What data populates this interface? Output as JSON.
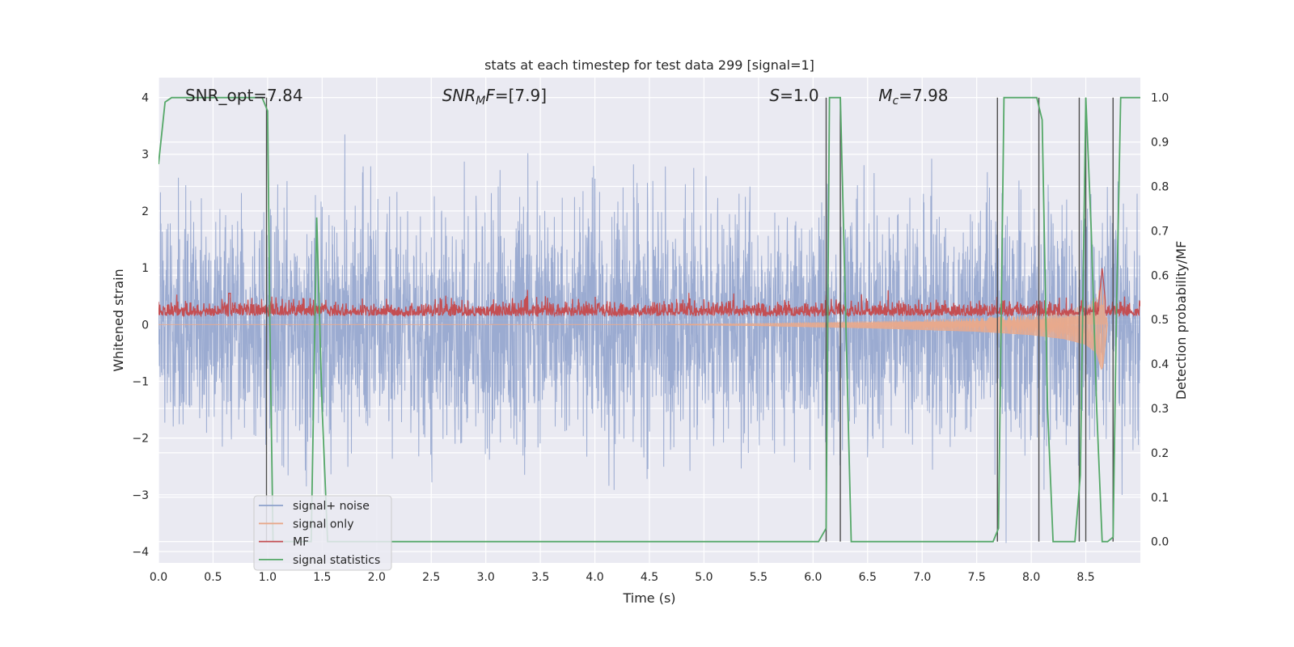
{
  "chart_data": {
    "type": "line",
    "title": "stats at each timestep for test data 299 [signal=1]",
    "xlabel": "Time (s)",
    "ylabel": "Whitened strain",
    "y2label": "Detection probability/MF",
    "xlim": [
      0.0,
      9.0
    ],
    "ylim": [
      -4.2,
      4.35
    ],
    "y2lim": [
      -0.048,
      1.045
    ],
    "xticks": [
      0.0,
      0.5,
      1.0,
      1.5,
      2.0,
      2.5,
      3.0,
      3.5,
      4.0,
      4.5,
      5.0,
      5.5,
      6.0,
      6.5,
      7.0,
      7.5,
      8.0,
      8.5
    ],
    "xtick_labels": [
      "0.0",
      "0.5",
      "1.0",
      "1.5",
      "2.0",
      "2.5",
      "3.0",
      "3.5",
      "4.0",
      "4.5",
      "5.0",
      "5.5",
      "6.0",
      "6.5",
      "7.0",
      "7.5",
      "8.0",
      "8.5"
    ],
    "yticks": [
      -4,
      -3,
      -2,
      -1,
      0,
      1,
      2,
      3,
      4
    ],
    "ytick_labels": [
      "−4",
      "−3",
      "−2",
      "−1",
      "0",
      "1",
      "2",
      "3",
      "4"
    ],
    "y2ticks": [
      0.0,
      0.1,
      0.2,
      0.3,
      0.4,
      0.5,
      0.6,
      0.7,
      0.8,
      0.9,
      1.0
    ],
    "y2tick_labels": [
      "0.0",
      "0.1",
      "0.2",
      "0.3",
      "0.4",
      "0.5",
      "0.6",
      "0.7",
      "0.8",
      "0.9",
      "1.0"
    ],
    "grid": true,
    "legend_position": "lower-left",
    "annotations": [
      {
        "text": "SNR_opt=7.84",
        "x": 0.2,
        "y": 4.05
      },
      {
        "text": "SNRMF=[7.9]",
        "x": 2.6,
        "y": 4.05
      },
      {
        "text": "S=1.0",
        "x": 5.6,
        "y": 4.05
      },
      {
        "text": "Mc=7.98",
        "x": 6.6,
        "y": 4.05
      }
    ],
    "series": [
      {
        "name": "signal+ noise",
        "color": "#8da0cb",
        "axis": "left",
        "description_values": "noise with envelope approximately ±1.5, peaks to ±3.3",
        "generated": true,
        "x_range": [
          0.0,
          9.0
        ],
        "amplitude": 1.0
      },
      {
        "name": "signal only",
        "color": "#e8a98c",
        "axis": "left",
        "x": [
          0.0,
          4.5,
          5.5,
          6.5,
          7.5,
          8.0,
          8.3,
          8.5,
          8.6,
          8.65,
          8.7
        ],
        "envelope": [
          0.0,
          0.0,
          0.02,
          0.06,
          0.12,
          0.18,
          0.25,
          0.35,
          0.5,
          0.85,
          0.0
        ]
      },
      {
        "name": "MF",
        "color": "#c44e52",
        "axis": "left",
        "baseline": 0.2,
        "spike": {
          "x": 8.65,
          "y": 1.0
        }
      },
      {
        "name": "signal statistics",
        "color": "#55a868",
        "axis": "right",
        "x": [
          0.0,
          0.06,
          0.12,
          0.3,
          0.5,
          0.95,
          1.0,
          1.02,
          1.05,
          1.4,
          1.45,
          1.5,
          1.55,
          1.6,
          6.05,
          6.12,
          6.15,
          6.2,
          6.25,
          6.3,
          6.35,
          7.65,
          7.7,
          7.75,
          8.05,
          8.1,
          8.15,
          8.2,
          8.4,
          8.45,
          8.5,
          8.55,
          8.6,
          8.65,
          8.7,
          8.75,
          8.78,
          8.82,
          9.0
        ],
        "values": [
          0.85,
          0.99,
          1.0,
          1.0,
          1.0,
          1.0,
          0.97,
          0.5,
          0.0,
          0.0,
          0.73,
          0.3,
          0.0,
          0.0,
          0.0,
          0.03,
          1.0,
          1.0,
          1.0,
          0.5,
          0.0,
          0.0,
          0.03,
          1.0,
          1.0,
          0.95,
          0.3,
          0.0,
          0.0,
          0.15,
          1.0,
          0.7,
          0.3,
          0.0,
          0.0,
          0.01,
          0.5,
          1.0,
          1.0
        ]
      }
    ],
    "vlines": {
      "color": "#4d4d4d",
      "x": [
        0.99,
        6.12,
        6.25,
        7.69,
        8.07,
        8.44,
        8.5,
        8.75
      ]
    }
  }
}
